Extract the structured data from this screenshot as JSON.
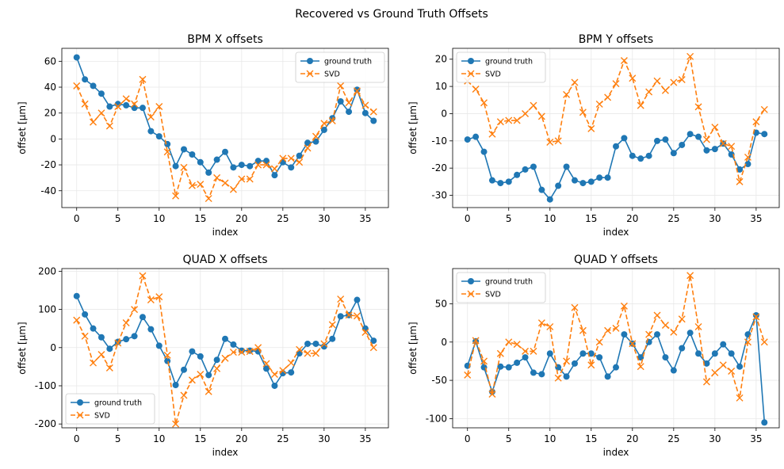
{
  "title": "Recovered vs Ground Truth Offsets",
  "colors": {
    "ground_truth": "#1f77b4",
    "svd": "#ff7f0e",
    "grid": "#e8e8e8",
    "axes": "#000000"
  },
  "chart_data": [
    {
      "type": "line",
      "title": "BPM X offsets",
      "xlabel": "index",
      "ylabel": "offset [μm]",
      "xlim": [
        -1.8,
        37.8
      ],
      "ylim": [
        -53,
        70
      ],
      "xticks": [
        0,
        5,
        10,
        15,
        20,
        25,
        30,
        35
      ],
      "yticks": [
        -40,
        -20,
        0,
        20,
        40,
        60
      ],
      "grid": true,
      "legend": "top-right",
      "series": [
        {
          "name": "ground truth",
          "style": "solid-circle",
          "x": [
            0,
            1,
            2,
            3,
            4,
            5,
            6,
            7,
            8,
            9,
            10,
            11,
            12,
            13,
            14,
            15,
            16,
            17,
            18,
            19,
            20,
            21,
            22,
            23,
            24,
            25,
            26,
            27,
            28,
            29,
            30,
            31,
            32,
            33,
            34,
            35,
            36
          ],
          "values": [
            63,
            46,
            41,
            35,
            25,
            27,
            26,
            24,
            24,
            6,
            2,
            -4,
            -21,
            -8,
            -12,
            -18,
            -26,
            -16,
            -10,
            -22,
            -20,
            -21,
            -17,
            -17,
            -28,
            -18,
            -22,
            -13,
            -3,
            -2,
            7,
            16,
            29,
            21,
            38,
            20,
            14
          ]
        },
        {
          "name": "SVD",
          "style": "dashed-x",
          "x": [
            0,
            1,
            2,
            3,
            4,
            5,
            6,
            7,
            8,
            9,
            10,
            11,
            12,
            13,
            14,
            15,
            16,
            17,
            18,
            19,
            20,
            21,
            22,
            23,
            24,
            25,
            26,
            27,
            28,
            29,
            30,
            31,
            32,
            33,
            34,
            35,
            36
          ],
          "values": [
            41,
            27,
            13,
            20,
            10,
            25,
            31,
            27,
            46,
            17,
            25,
            -10,
            -44,
            -22,
            -36,
            -35,
            -46,
            -30,
            -34,
            -39,
            -31,
            -31,
            -20,
            -20,
            -23,
            -15,
            -15,
            -18,
            -7,
            2,
            12,
            14,
            41,
            28,
            37,
            26,
            21
          ]
        }
      ]
    },
    {
      "type": "line",
      "title": "BPM Y offsets",
      "xlabel": "index",
      "ylabel": "offset [μm]",
      "xlim": [
        -1.8,
        37.8
      ],
      "ylim": [
        -34.5,
        24
      ],
      "xticks": [
        0,
        5,
        10,
        15,
        20,
        25,
        30,
        35
      ],
      "yticks": [
        -30,
        -20,
        -10,
        0,
        10,
        20
      ],
      "grid": true,
      "legend": "top-left",
      "series": [
        {
          "name": "ground truth",
          "style": "solid-circle",
          "x": [
            0,
            1,
            2,
            3,
            4,
            5,
            6,
            7,
            8,
            9,
            10,
            11,
            12,
            13,
            14,
            15,
            16,
            17,
            18,
            19,
            20,
            21,
            22,
            23,
            24,
            25,
            26,
            27,
            28,
            29,
            30,
            31,
            32,
            33,
            34,
            35,
            36
          ],
          "values": [
            -9.5,
            -8.5,
            -14,
            -24.5,
            -25.5,
            -25,
            -22.5,
            -20.5,
            -19.5,
            -28,
            -31.5,
            -26.5,
            -19.5,
            -24.5,
            -25.5,
            -25,
            -23.5,
            -23.5,
            -12,
            -9,
            -15.5,
            -16.5,
            -15.5,
            -10,
            -9.5,
            -14.5,
            -11.5,
            -7.5,
            -8.5,
            -13.5,
            -13,
            -11,
            -15,
            -20.5,
            -18.5,
            -7,
            -7.5
          ]
        },
        {
          "name": "SVD",
          "style": "dashed-x",
          "x": [
            0,
            1,
            2,
            3,
            4,
            5,
            6,
            7,
            8,
            9,
            10,
            11,
            12,
            13,
            14,
            15,
            16,
            17,
            18,
            19,
            20,
            21,
            22,
            23,
            24,
            25,
            26,
            27,
            28,
            29,
            30,
            31,
            32,
            33,
            34,
            35,
            36
          ],
          "values": [
            12,
            9,
            4,
            -7.5,
            -3,
            -2.5,
            -2.5,
            0,
            3,
            -1,
            -10.5,
            -10,
            7,
            11.5,
            0.5,
            -5.5,
            3.5,
            6,
            11,
            19.5,
            13,
            3,
            8,
            12,
            8.5,
            11.5,
            12.5,
            21,
            2.5,
            -9.5,
            -5,
            -11,
            -12,
            -25,
            -16,
            -3,
            1.5
          ]
        }
      ]
    },
    {
      "type": "line",
      "title": "QUAD X offsets",
      "xlabel": "index",
      "ylabel": "offset [μm]",
      "xlim": [
        -1.8,
        37.8
      ],
      "ylim": [
        -210,
        207
      ],
      "xticks": [
        0,
        5,
        10,
        15,
        20,
        25,
        30,
        35
      ],
      "yticks": [
        -200,
        -100,
        0,
        100,
        200
      ],
      "grid": true,
      "legend": "bottom-left",
      "series": [
        {
          "name": "ground truth",
          "style": "solid-circle",
          "x": [
            0,
            1,
            2,
            3,
            4,
            5,
            6,
            7,
            8,
            9,
            10,
            11,
            12,
            13,
            14,
            15,
            16,
            17,
            18,
            19,
            20,
            21,
            22,
            23,
            24,
            25,
            26,
            27,
            28,
            29,
            30,
            31,
            32,
            33,
            34,
            35,
            36
          ],
          "values": [
            135,
            87,
            50,
            27,
            -3,
            15,
            22,
            30,
            80,
            48,
            5,
            -35,
            -98,
            -58,
            -10,
            -23,
            -72,
            -32,
            23,
            8,
            -8,
            -8,
            -10,
            -55,
            -100,
            -67,
            -65,
            -15,
            10,
            10,
            3,
            23,
            82,
            85,
            125,
            50,
            18
          ]
        },
        {
          "name": "SVD",
          "style": "dashed-x",
          "x": [
            0,
            1,
            2,
            3,
            4,
            5,
            6,
            7,
            8,
            9,
            10,
            11,
            12,
            13,
            14,
            15,
            16,
            17,
            18,
            19,
            20,
            21,
            22,
            23,
            24,
            25,
            26,
            27,
            28,
            29,
            30,
            31,
            32,
            33,
            34,
            35,
            36
          ],
          "values": [
            72,
            30,
            -40,
            -18,
            -53,
            12,
            65,
            100,
            188,
            125,
            133,
            -20,
            -200,
            -125,
            -85,
            -70,
            -115,
            -55,
            -28,
            -12,
            -12,
            -10,
            0,
            -42,
            -70,
            -60,
            -40,
            -5,
            -15,
            -15,
            10,
            60,
            127,
            85,
            83,
            40,
            0
          ]
        }
      ]
    },
    {
      "type": "line",
      "title": "QUAD Y offsets",
      "xlabel": "index",
      "ylabel": "offset [μm]",
      "xlim": [
        -1.8,
        37.8
      ],
      "ylim": [
        -112,
        96
      ],
      "xticks": [
        0,
        5,
        10,
        15,
        20,
        25,
        30,
        35
      ],
      "yticks": [
        -100,
        -50,
        0,
        50
      ],
      "grid": true,
      "legend": "top-left",
      "series": [
        {
          "name": "ground truth",
          "style": "solid-circle",
          "x": [
            0,
            1,
            2,
            3,
            4,
            5,
            6,
            7,
            8,
            9,
            10,
            11,
            12,
            13,
            14,
            15,
            16,
            17,
            18,
            19,
            20,
            21,
            22,
            23,
            24,
            25,
            26,
            27,
            28,
            29,
            30,
            31,
            32,
            33,
            34,
            35,
            36
          ],
          "values": [
            -31,
            1,
            -33,
            -65,
            -32,
            -33,
            -27,
            -20,
            -40,
            -42,
            -15,
            -33,
            -45,
            -28,
            -15,
            -15,
            -20,
            -45,
            -33,
            10,
            -2,
            -20,
            0,
            10,
            -20,
            -37,
            -8,
            12,
            -15,
            -28,
            -15,
            -3,
            -15,
            -32,
            10,
            35,
            -105
          ]
        },
        {
          "name": "SVD",
          "style": "dashed-x",
          "x": [
            0,
            1,
            2,
            3,
            4,
            5,
            6,
            7,
            8,
            9,
            10,
            11,
            12,
            13,
            14,
            15,
            16,
            17,
            18,
            19,
            20,
            21,
            22,
            23,
            24,
            25,
            26,
            27,
            28,
            29,
            30,
            31,
            32,
            33,
            34,
            35,
            36
          ],
          "values": [
            -43,
            2,
            -25,
            -68,
            -15,
            0,
            -3,
            -12,
            -12,
            25,
            20,
            -47,
            -25,
            45,
            15,
            -30,
            0,
            15,
            18,
            47,
            -2,
            -32,
            10,
            35,
            22,
            13,
            30,
            87,
            20,
            -52,
            -40,
            -30,
            -38,
            -73,
            0,
            33,
            0
          ]
        }
      ]
    }
  ]
}
